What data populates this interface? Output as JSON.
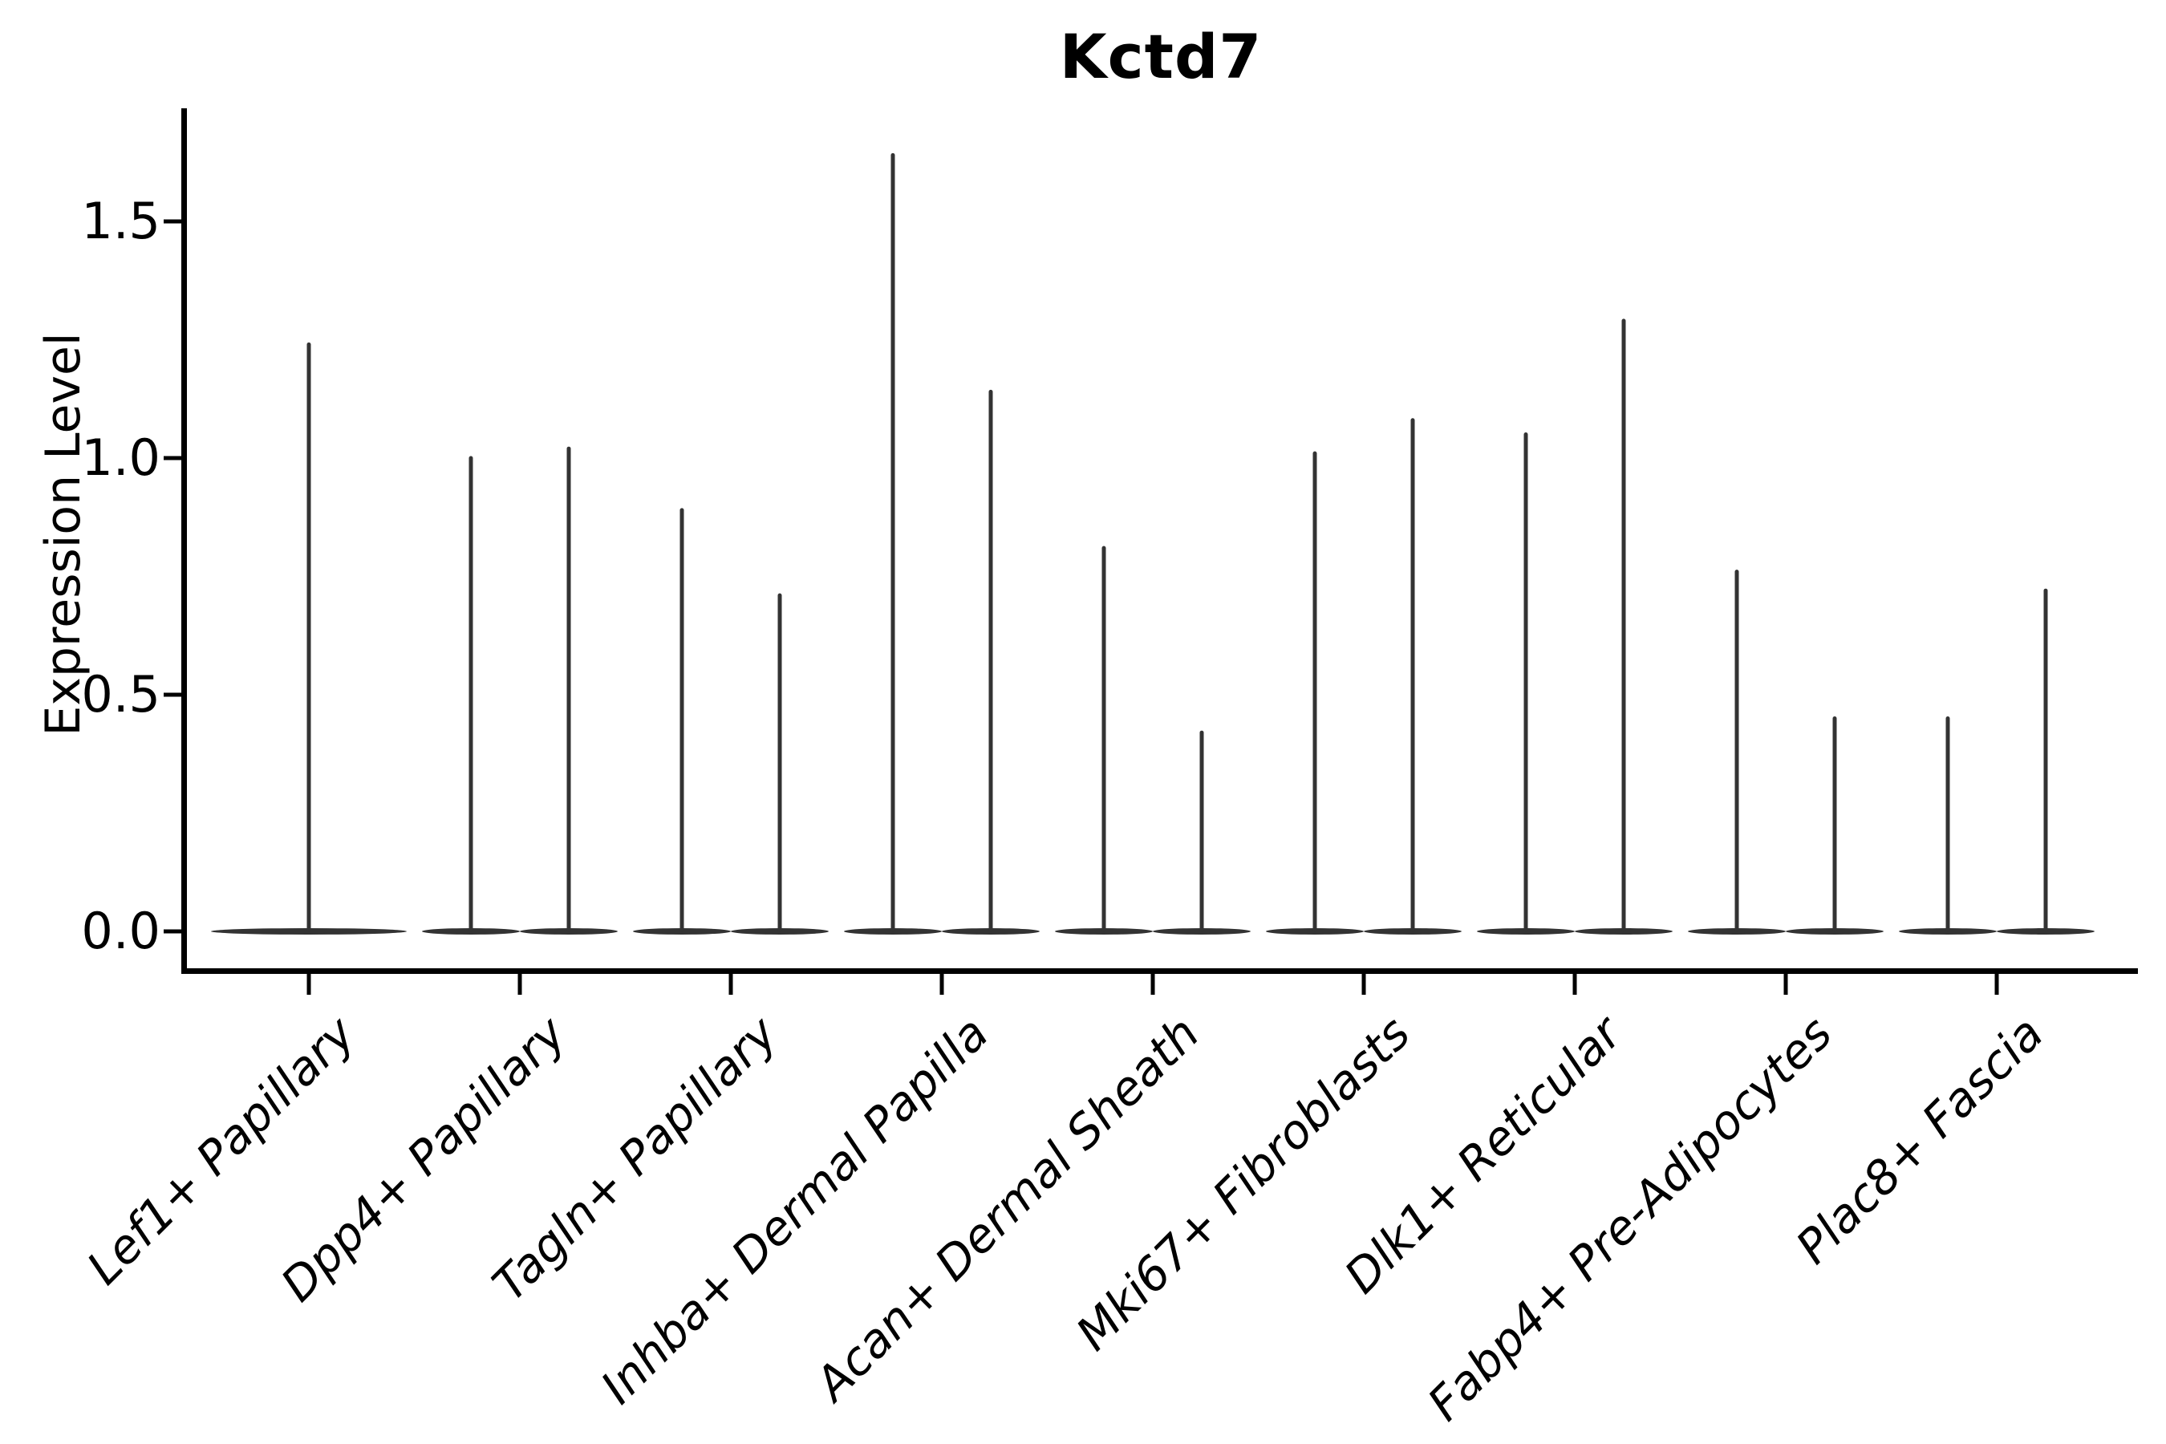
{
  "chart_data": {
    "type": "violin",
    "title": "Kctd7",
    "ylabel": "Expression Level",
    "xlabel": "",
    "ylim": [
      -0.084,
      1.73
    ],
    "yticks": [
      0.0,
      0.5,
      1.0,
      1.5
    ],
    "ytick_labels": [
      "0.0",
      "0.5",
      "1.0",
      "1.5"
    ],
    "grid": false,
    "legend": "none",
    "background_color": "#ffffff",
    "axis_color": "#000000",
    "violin_color": "#333333",
    "description": "Violin plot of Kctd7 expression; each violin collapses to a flat band at 0 with a thin density spike rising to the maximum expression value. First category shows one full-width violin; all others show two side-by-side violins.",
    "categories": [
      "Lef1+ Papillary",
      "Dpp4+ Papillary",
      "Tagln+ Papillary",
      "Inhba+ Dermal Papilla",
      "Acan+ Dermal Sheath",
      "Mki67+ Fibroblasts",
      "Dlk1+ Reticular",
      "Fabp4+ Pre-Adipocytes",
      "Plac8+ Fascia"
    ],
    "series": [
      {
        "category": "Lef1+ Papillary",
        "spike_max_values": [
          1.24
        ]
      },
      {
        "category": "Dpp4+ Papillary",
        "spike_max_values": [
          1.0,
          1.02
        ]
      },
      {
        "category": "Tagln+ Papillary",
        "spike_max_values": [
          0.89,
          0.71
        ]
      },
      {
        "category": "Inhba+ Dermal Papilla",
        "spike_max_values": [
          1.64,
          1.14
        ]
      },
      {
        "category": "Acan+ Dermal Sheath",
        "spike_max_values": [
          0.81,
          0.42
        ]
      },
      {
        "category": "Mki67+ Fibroblasts",
        "spike_max_values": [
          1.01,
          1.08
        ]
      },
      {
        "category": "Dlk1+ Reticular",
        "spike_max_values": [
          1.05,
          1.29
        ]
      },
      {
        "category": "Fabp4+ Pre-Adipocytes",
        "spike_max_values": [
          0.76,
          0.45
        ]
      },
      {
        "category": "Plac8+ Fascia",
        "spike_max_values": [
          0.45,
          0.72
        ]
      }
    ]
  }
}
